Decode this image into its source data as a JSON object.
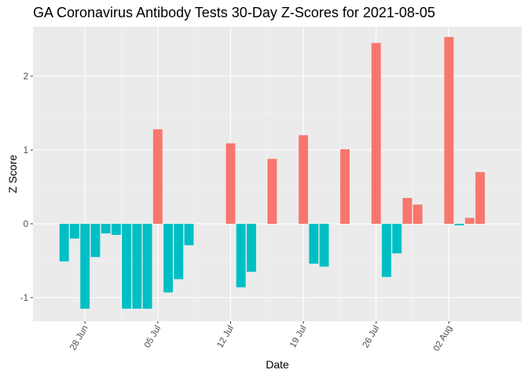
{
  "chart_data": {
    "type": "bar",
    "title": "GA Coronavirus Antibody Tests 30-Day Z-Scores for 2021-08-05",
    "xlabel": "Date",
    "ylabel": "Z Score",
    "x_ticks": [
      {
        "date": "2021-06-28",
        "label": "28 Jun"
      },
      {
        "date": "2021-07-05",
        "label": "05 Jul"
      },
      {
        "date": "2021-07-12",
        "label": "12 Jul"
      },
      {
        "date": "2021-07-19",
        "label": "19 Jul"
      },
      {
        "date": "2021-07-26",
        "label": "26 Jul"
      },
      {
        "date": "2021-08-02",
        "label": "02 Aug"
      }
    ],
    "y_ticks": [
      {
        "value": -1,
        "label": "-1"
      },
      {
        "value": 0,
        "label": "0"
      },
      {
        "value": 1,
        "label": "1"
      },
      {
        "value": 2,
        "label": "2"
      }
    ],
    "xlim": [
      "2021-06-23",
      "2021-08-09"
    ],
    "ylim": [
      -1.32,
      2.67
    ],
    "grid": true,
    "legend": "none",
    "colors": {
      "positive": "#F8766D",
      "negative": "#00BFC4",
      "panel": "#EBEBEB",
      "grid_major": "#FFFFFF",
      "grid_minor": "#F5F5F5"
    },
    "series": [
      {
        "points": [
          {
            "date": "2021-06-26",
            "value": -0.51
          },
          {
            "date": "2021-06-27",
            "value": -0.2
          },
          {
            "date": "2021-06-28",
            "value": -1.15
          },
          {
            "date": "2021-06-29",
            "value": -0.45
          },
          {
            "date": "2021-06-30",
            "value": -0.13
          },
          {
            "date": "2021-07-01",
            "value": -0.15
          },
          {
            "date": "2021-07-02",
            "value": -1.15
          },
          {
            "date": "2021-07-03",
            "value": -1.15
          },
          {
            "date": "2021-07-04",
            "value": -1.15
          },
          {
            "date": "2021-07-05",
            "value": 1.28
          },
          {
            "date": "2021-07-06",
            "value": -0.93
          },
          {
            "date": "2021-07-07",
            "value": -0.75
          },
          {
            "date": "2021-07-08",
            "value": -0.29
          },
          {
            "date": "2021-07-12",
            "value": 1.09
          },
          {
            "date": "2021-07-13",
            "value": -0.86
          },
          {
            "date": "2021-07-14",
            "value": -0.65
          },
          {
            "date": "2021-07-16",
            "value": 0.88
          },
          {
            "date": "2021-07-19",
            "value": 1.2
          },
          {
            "date": "2021-07-20",
            "value": -0.54
          },
          {
            "date": "2021-07-21",
            "value": -0.58
          },
          {
            "date": "2021-07-23",
            "value": 1.01
          },
          {
            "date": "2021-07-26",
            "value": 2.45
          },
          {
            "date": "2021-07-27",
            "value": -0.72
          },
          {
            "date": "2021-07-28",
            "value": -0.4
          },
          {
            "date": "2021-07-29",
            "value": 0.35
          },
          {
            "date": "2021-07-30",
            "value": 0.26
          },
          {
            "date": "2021-08-02",
            "value": 2.53
          },
          {
            "date": "2021-08-03",
            "value": -0.02
          },
          {
            "date": "2021-08-04",
            "value": 0.08
          },
          {
            "date": "2021-08-05",
            "value": 0.7
          }
        ]
      }
    ]
  }
}
